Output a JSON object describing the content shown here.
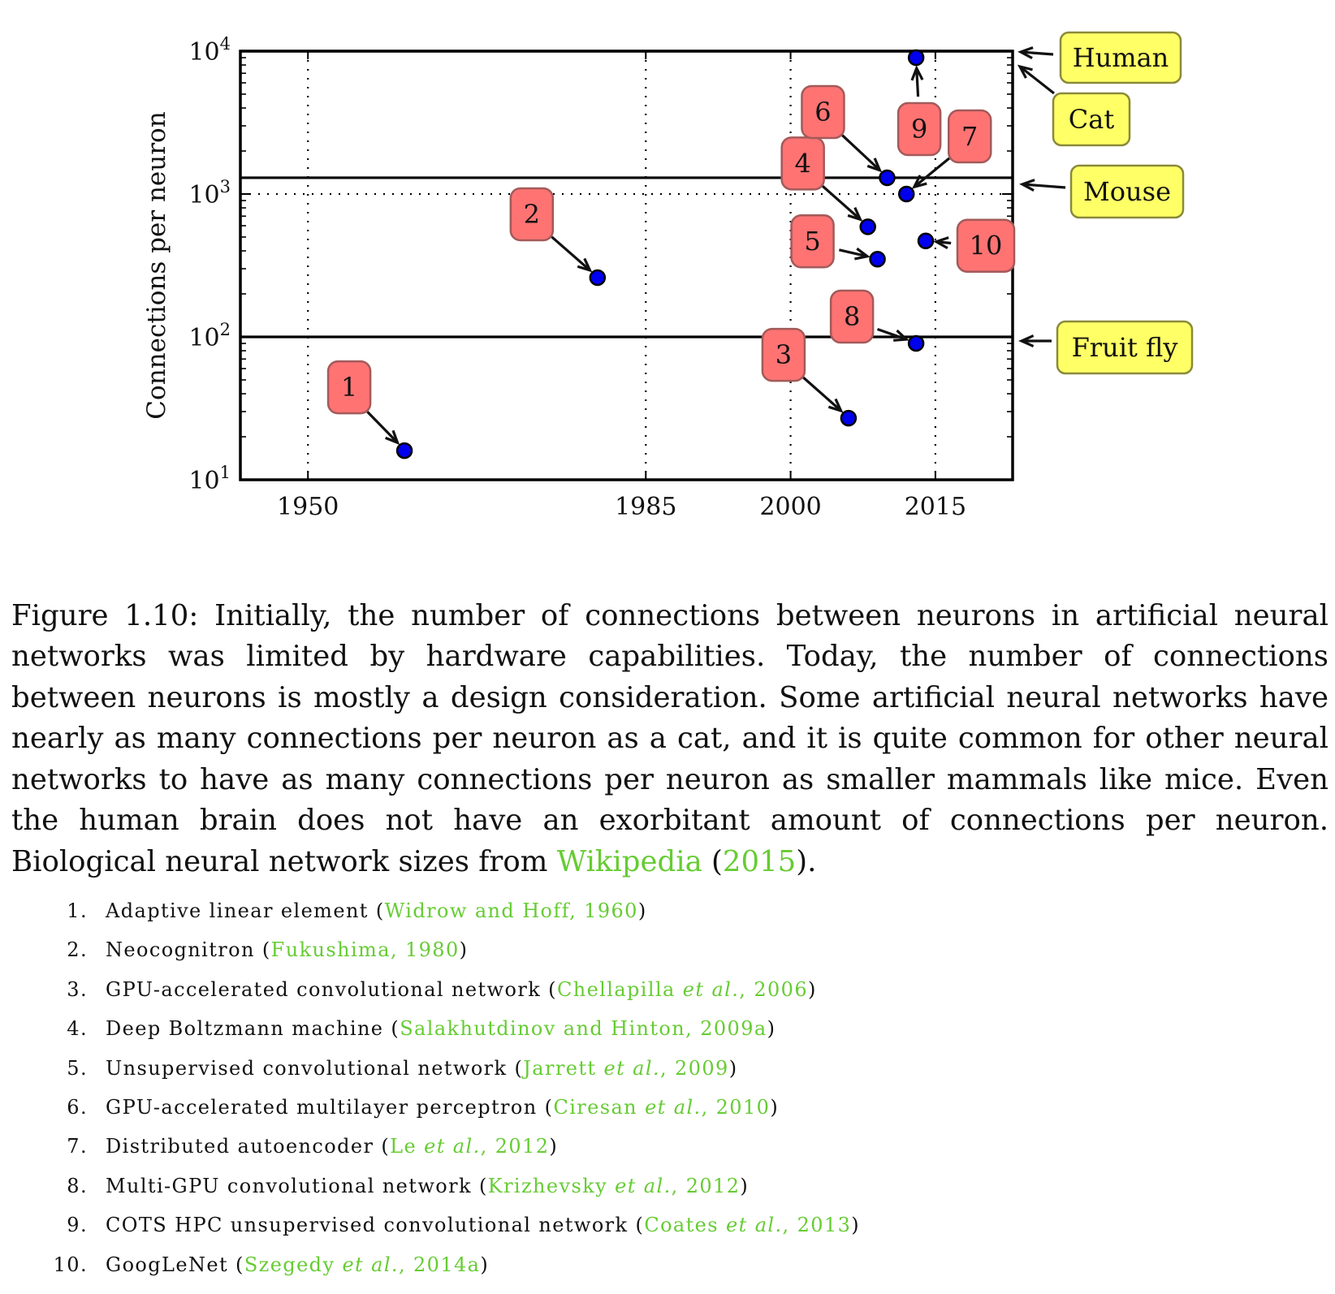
{
  "chart_data": {
    "type": "scatter",
    "ylabel": "Connections per neuron",
    "xlabel": "",
    "y_scale": "log",
    "xlim": [
      1943,
      2023
    ],
    "ylim": [
      10,
      10000
    ],
    "grid": "dotted",
    "x_ticks": [
      1950,
      1985,
      2000,
      2015
    ],
    "y_ticks": [
      {
        "value": 10,
        "base": "10",
        "exp": "1"
      },
      {
        "value": 100,
        "base": "10",
        "exp": "2"
      },
      {
        "value": 1000,
        "base": "10",
        "exp": "3"
      },
      {
        "value": 10000,
        "base": "10",
        "exp": "4"
      }
    ],
    "reference_lines": [
      {
        "label": "Human",
        "value": 10000
      },
      {
        "label": "Cat",
        "value": 8000
      },
      {
        "label": "Mouse",
        "value": 1300
      },
      {
        "label": "Fruit fly",
        "value": 100
      }
    ],
    "points": [
      {
        "label": "1",
        "x": 1960,
        "y": 16
      },
      {
        "label": "2",
        "x": 1980,
        "y": 260
      },
      {
        "label": "3",
        "x": 2006,
        "y": 27
      },
      {
        "label": "4",
        "x": 2008,
        "y": 590
      },
      {
        "label": "5",
        "x": 2009,
        "y": 350
      },
      {
        "label": "6",
        "x": 2010,
        "y": 1300
      },
      {
        "label": "7",
        "x": 2012,
        "y": 1000
      },
      {
        "label": "8",
        "x": 2013,
        "y": 90
      },
      {
        "label": "9",
        "x": 2013,
        "y": 9000
      },
      {
        "label": "10",
        "x": 2014,
        "y": 470
      }
    ],
    "colors": {
      "point": "#0000ee",
      "label_box": "#ff7373",
      "reference_box": "#ffff66"
    }
  },
  "caption": {
    "lead": "Figure 1.10: Initially, the number of connections between neurons in artificial neural networks was limited by hardware capabilities. Today, the number of connections between neurons is mostly a design consideration. Some artificial neural networks have nearly as many connections per neuron as a cat, and it is quite common for other neural networks to have as many connections per neuron as smaller mammals like mice. Even the human brain does not have an exorbitant amount of connections per neuron. Biological neural network sizes from ",
    "cite_name": "Wikipedia",
    "cite_open": " (",
    "cite_year": "2015",
    "cite_close": ")."
  },
  "references": [
    {
      "num": "1.",
      "name": "Adaptive linear element",
      "authors": "Widrow and Hoff",
      "etal": "",
      "year": "1960"
    },
    {
      "num": "2.",
      "name": "Neocognitron",
      "authors": "Fukushima",
      "etal": "",
      "year": "1980"
    },
    {
      "num": "3.",
      "name": "GPU-accelerated convolutional network",
      "authors": "Chellapilla",
      "etal": "et al.",
      "year": "2006"
    },
    {
      "num": "4.",
      "name": "Deep Boltzmann machine",
      "authors": "Salakhutdinov and Hinton",
      "etal": "",
      "year": "2009a"
    },
    {
      "num": "5.",
      "name": "Unsupervised convolutional network",
      "authors": "Jarrett",
      "etal": "et al.",
      "year": "2009"
    },
    {
      "num": "6.",
      "name": "GPU-accelerated multilayer perceptron",
      "authors": "Ciresan",
      "etal": "et al.",
      "year": "2010"
    },
    {
      "num": "7.",
      "name": "Distributed autoencoder",
      "authors": "Le",
      "etal": "et al.",
      "year": "2012"
    },
    {
      "num": "8.",
      "name": "Multi-GPU convolutional network",
      "authors": "Krizhevsky",
      "etal": "et al.",
      "year": "2012"
    },
    {
      "num": "9.",
      "name": "COTS HPC unsupervised convolutional network",
      "authors": "Coates",
      "etal": "et al.",
      "year": "2013"
    },
    {
      "num": "10.",
      "name": "GoogLeNet",
      "authors": "Szegedy",
      "etal": "et al.",
      "year": "2014a"
    }
  ]
}
